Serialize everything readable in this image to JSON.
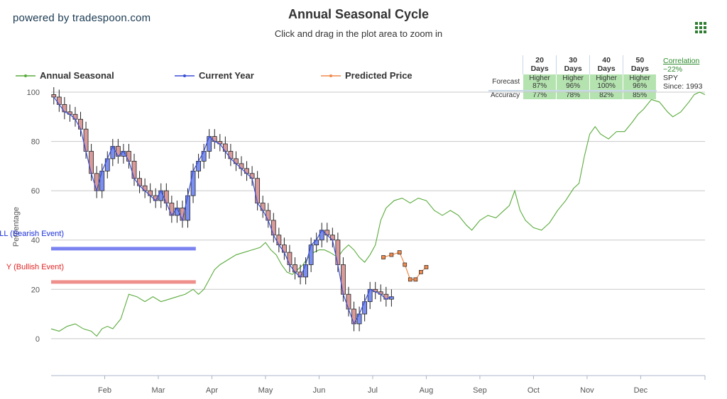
{
  "header": {
    "brand": "powered by tradespoon.com",
    "title": "Annual Seasonal Cycle",
    "subtitle": "Click and drag in the plot area to zoom in"
  },
  "menu_icon": "hamburger-grid-icon",
  "legend": [
    {
      "label": "Annual Seasonal",
      "color": "#5aab3c"
    },
    {
      "label": "Current Year",
      "color": "#3b4fd8"
    },
    {
      "label": "Predicted Price",
      "color": "#f08a4b"
    }
  ],
  "accuracy_table": {
    "headers": [
      "20 Days",
      "30 Days",
      "40 Days",
      "50 Days"
    ],
    "forecast_label": "Forecast",
    "accuracy_label": "Accuracy",
    "forecast": [
      {
        "dir": "Higher",
        "pct": "87%"
      },
      {
        "dir": "Higher",
        "pct": "96%"
      },
      {
        "dir": "Higher",
        "pct": "100%"
      },
      {
        "dir": "Higher",
        "pct": "96%"
      }
    ],
    "accuracy": [
      "77%",
      "78%",
      "82%",
      "85%"
    ]
  },
  "correlation": {
    "label": "Correlation",
    "value": "~22%",
    "symbol": "SPY",
    "since": "Since: 1993"
  },
  "colors": {
    "seasonal": "#5aab3c",
    "current": "#3b4fd8",
    "predicted": "#f08a4b",
    "bearish_band": "#7b83f0",
    "bullish_band": "#ef8f8b",
    "bearish_text": "#1a2fd8",
    "bullish_text": "#e02424",
    "candle_up": "#7b8ff0",
    "candle_down": "#d99a9a",
    "grid": "#c8c8c8"
  },
  "chart_data": {
    "type": "line",
    "title": "Annual Seasonal Cycle",
    "subtitle": "Click and drag in the plot area to zoom in",
    "xlabel": "",
    "ylabel": "Percentage",
    "ylim": [
      -15,
      100
    ],
    "yticks": [
      0,
      20,
      40,
      60,
      80,
      100
    ],
    "xlim": [
      0,
      12.2
    ],
    "month_ticks": [
      {
        "label": "Feb",
        "x": 1
      },
      {
        "label": "Mar",
        "x": 2
      },
      {
        "label": "Apr",
        "x": 3
      },
      {
        "label": "May",
        "x": 4
      },
      {
        "label": "Jun",
        "x": 5
      },
      {
        "label": "Jul",
        "x": 6
      },
      {
        "label": "Aug",
        "x": 7
      },
      {
        "label": "Sep",
        "x": 8
      },
      {
        "label": "Oct",
        "x": 9
      },
      {
        "label": "Nov",
        "x": 10
      },
      {
        "label": "Dec",
        "x": 11
      }
    ],
    "grid": true,
    "legend_position": "top-left",
    "events": [
      {
        "label": "LL (Bearish Event)",
        "y": 36.5,
        "x_start": 0,
        "x_end": 2.7,
        "kind": "bearish"
      },
      {
        "label": "Y (Bullish Event)",
        "y": 23,
        "x_start": 0,
        "x_end": 2.7,
        "kind": "bullish"
      }
    ],
    "series": [
      {
        "name": "Annual Seasonal",
        "kind": "line",
        "points": [
          [
            0,
            4
          ],
          [
            0.15,
            3
          ],
          [
            0.3,
            5
          ],
          [
            0.45,
            6
          ],
          [
            0.6,
            4
          ],
          [
            0.75,
            3
          ],
          [
            0.85,
            1
          ],
          [
            0.95,
            4
          ],
          [
            1.05,
            5
          ],
          [
            1.15,
            4
          ],
          [
            1.3,
            8
          ],
          [
            1.45,
            18
          ],
          [
            1.6,
            17
          ],
          [
            1.75,
            15
          ],
          [
            1.9,
            17
          ],
          [
            2.05,
            15
          ],
          [
            2.2,
            16
          ],
          [
            2.35,
            17
          ],
          [
            2.5,
            18
          ],
          [
            2.65,
            20
          ],
          [
            2.75,
            18
          ],
          [
            2.85,
            20
          ],
          [
            2.95,
            24
          ],
          [
            3.05,
            28
          ],
          [
            3.15,
            30
          ],
          [
            3.3,
            32
          ],
          [
            3.45,
            34
          ],
          [
            3.6,
            35
          ],
          [
            3.75,
            36
          ],
          [
            3.9,
            37
          ],
          [
            4.0,
            39
          ],
          [
            4.1,
            36
          ],
          [
            4.2,
            34
          ],
          [
            4.3,
            30
          ],
          [
            4.4,
            27
          ],
          [
            4.5,
            26
          ],
          [
            4.6,
            28
          ],
          [
            4.7,
            30
          ],
          [
            4.8,
            33
          ],
          [
            4.9,
            35
          ],
          [
            5.0,
            36
          ],
          [
            5.1,
            36
          ],
          [
            5.2,
            35
          ],
          [
            5.35,
            33
          ],
          [
            5.45,
            36
          ],
          [
            5.55,
            38
          ],
          [
            5.65,
            36
          ],
          [
            5.75,
            33
          ],
          [
            5.85,
            31
          ],
          [
            5.95,
            34
          ],
          [
            6.05,
            38
          ],
          [
            6.15,
            48
          ],
          [
            6.25,
            53
          ],
          [
            6.4,
            56
          ],
          [
            6.55,
            57
          ],
          [
            6.7,
            55
          ],
          [
            6.85,
            57
          ],
          [
            7.0,
            56
          ],
          [
            7.15,
            52
          ],
          [
            7.3,
            50
          ],
          [
            7.45,
            52
          ],
          [
            7.6,
            50
          ],
          [
            7.75,
            46
          ],
          [
            7.85,
            44
          ],
          [
            8.0,
            48
          ],
          [
            8.15,
            50
          ],
          [
            8.3,
            49
          ],
          [
            8.45,
            52
          ],
          [
            8.55,
            54
          ],
          [
            8.65,
            60
          ],
          [
            8.75,
            52
          ],
          [
            8.85,
            48
          ],
          [
            9.0,
            45
          ],
          [
            9.15,
            44
          ],
          [
            9.3,
            47
          ],
          [
            9.45,
            52
          ],
          [
            9.6,
            56
          ],
          [
            9.75,
            61
          ],
          [
            9.85,
            63
          ],
          [
            9.95,
            74
          ],
          [
            10.05,
            83
          ],
          [
            10.15,
            86
          ],
          [
            10.25,
            83
          ],
          [
            10.4,
            81
          ],
          [
            10.55,
            84
          ],
          [
            10.7,
            84
          ],
          [
            10.85,
            88
          ],
          [
            10.95,
            91
          ],
          [
            11.05,
            93
          ],
          [
            11.2,
            97
          ],
          [
            11.35,
            96
          ],
          [
            11.5,
            92
          ],
          [
            11.6,
            90
          ],
          [
            11.75,
            92
          ],
          [
            11.9,
            96
          ],
          [
            12.0,
            99
          ],
          [
            12.1,
            100
          ],
          [
            12.2,
            99
          ]
        ]
      },
      {
        "name": "Current Year",
        "kind": "candlestick",
        "points": [
          [
            0.05,
            98
          ],
          [
            0.15,
            95
          ],
          [
            0.25,
            92
          ],
          [
            0.35,
            91
          ],
          [
            0.45,
            89
          ],
          [
            0.55,
            85
          ],
          [
            0.65,
            76
          ],
          [
            0.75,
            67
          ],
          [
            0.85,
            60
          ],
          [
            0.95,
            68
          ],
          [
            1.05,
            73
          ],
          [
            1.15,
            78
          ],
          [
            1.25,
            74
          ],
          [
            1.35,
            76
          ],
          [
            1.45,
            72
          ],
          [
            1.55,
            65
          ],
          [
            1.65,
            62
          ],
          [
            1.75,
            60
          ],
          [
            1.85,
            58
          ],
          [
            1.95,
            56
          ],
          [
            2.05,
            60
          ],
          [
            2.15,
            55
          ],
          [
            2.25,
            50
          ],
          [
            2.35,
            53
          ],
          [
            2.45,
            48
          ],
          [
            2.55,
            58
          ],
          [
            2.65,
            68
          ],
          [
            2.75,
            72
          ],
          [
            2.85,
            76
          ],
          [
            2.95,
            82
          ],
          [
            3.05,
            80
          ],
          [
            3.15,
            79
          ],
          [
            3.25,
            76
          ],
          [
            3.35,
            73
          ],
          [
            3.45,
            71
          ],
          [
            3.55,
            69
          ],
          [
            3.65,
            67
          ],
          [
            3.75,
            65
          ],
          [
            3.85,
            55
          ],
          [
            3.95,
            52
          ],
          [
            4.05,
            48
          ],
          [
            4.15,
            42
          ],
          [
            4.25,
            38
          ],
          [
            4.35,
            35
          ],
          [
            4.45,
            30
          ],
          [
            4.55,
            27
          ],
          [
            4.65,
            25
          ],
          [
            4.75,
            30
          ],
          [
            4.85,
            38
          ],
          [
            4.95,
            40
          ],
          [
            5.05,
            44
          ],
          [
            5.15,
            42
          ],
          [
            5.25,
            40
          ],
          [
            5.35,
            30
          ],
          [
            5.45,
            18
          ],
          [
            5.55,
            12
          ],
          [
            5.65,
            6
          ],
          [
            5.75,
            10
          ],
          [
            5.85,
            15
          ],
          [
            5.95,
            20
          ],
          [
            6.05,
            19
          ],
          [
            6.15,
            18
          ],
          [
            6.25,
            16
          ],
          [
            6.35,
            17
          ]
        ]
      },
      {
        "name": "Predicted Price",
        "kind": "line",
        "points": [
          [
            6.2,
            33
          ],
          [
            6.35,
            34
          ],
          [
            6.5,
            35
          ],
          [
            6.6,
            30
          ],
          [
            6.7,
            24
          ],
          [
            6.8,
            24
          ],
          [
            6.9,
            27
          ],
          [
            7.0,
            29
          ]
        ]
      }
    ]
  }
}
